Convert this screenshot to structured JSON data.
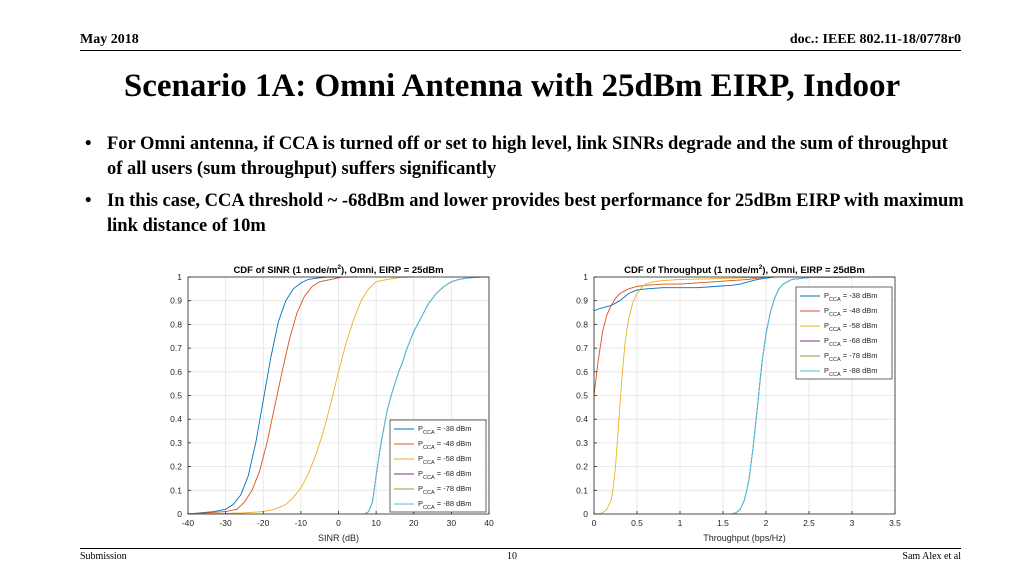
{
  "header": {
    "date": "May 2018",
    "doc": "doc.: IEEE 802.11-18/0778r0"
  },
  "title": "Scenario 1A: Omni Antenna with 25dBm EIRP, Indoor",
  "bullets": [
    "For Omni antenna, if CCA is turned off or set to high level, link SINRs degrade and the sum of throughput of all users (sum throughput) suffers significantly",
    "In this case, CCA threshold ~ -68dBm and lower provides best performance for 25dBm EIRP with maximum link distance of 10m"
  ],
  "footer": {
    "left": "Submission",
    "page": "10",
    "right": "Sam Alex et al"
  },
  "chart_data": [
    {
      "type": "line",
      "title_main": "CDF of SINR (1 node/m",
      "title_sup": "2",
      "title_rest": "), Omni, EIRP = 25dBm",
      "xlabel": "SINR (dB)",
      "ylabel": "",
      "xlim": [
        -40,
        40
      ],
      "ylim": [
        0,
        1
      ],
      "xticks": [
        -40,
        -30,
        -20,
        -10,
        0,
        10,
        20,
        30,
        40
      ],
      "xtick_labels": [
        "-40",
        "-30",
        "-20",
        "-10",
        "0",
        "10",
        "20",
        "30",
        "40"
      ],
      "yticks": [
        0,
        0.1,
        0.2,
        0.3,
        0.4,
        0.5,
        0.6,
        0.7,
        0.8,
        0.9,
        1
      ],
      "ytick_labels": [
        "0",
        "0.1",
        "0.2",
        "0.3",
        "0.4",
        "0.5",
        "0.6",
        "0.7",
        "0.8",
        "0.9",
        "1"
      ],
      "grid": true,
      "legend_position": "bottom-right",
      "series": [
        {
          "legend_main": "P",
          "legend_sub": "CCA",
          "legend_rest": " = -38 dBm",
          "color": "#0072bd",
          "x": [
            -40,
            -33,
            -30,
            -28,
            -26,
            -24,
            -22,
            -20,
            -18,
            -16,
            -14,
            -12,
            -10,
            -8,
            -6,
            -3,
            0
          ],
          "y": [
            0,
            0.01,
            0.02,
            0.04,
            0.08,
            0.16,
            0.3,
            0.48,
            0.66,
            0.81,
            0.9,
            0.95,
            0.975,
            0.99,
            0.995,
            1,
            1
          ]
        },
        {
          "legend_main": "P",
          "legend_sub": "CCA",
          "legend_rest": " = -48 dBm",
          "color": "#d95319",
          "x": [
            -40,
            -35,
            -30,
            -27,
            -25,
            -23,
            -21,
            -19,
            -17,
            -15,
            -13,
            -11,
            -9,
            -7,
            -5,
            -2,
            1,
            5
          ],
          "y": [
            0,
            0.005,
            0.01,
            0.02,
            0.05,
            0.1,
            0.18,
            0.3,
            0.45,
            0.6,
            0.74,
            0.85,
            0.92,
            0.96,
            0.98,
            0.99,
            1,
            1
          ]
        },
        {
          "legend_main": "P",
          "legend_sub": "CCA",
          "legend_rest": " = -58 dBm",
          "color": "#edb120",
          "x": [
            -40,
            -30,
            -25,
            -20,
            -17,
            -14,
            -12,
            -10,
            -8,
            -6,
            -4,
            -2,
            0,
            2,
            4,
            6,
            8,
            10,
            13,
            16,
            20
          ],
          "y": [
            0,
            0.002,
            0.005,
            0.01,
            0.02,
            0.04,
            0.07,
            0.11,
            0.17,
            0.25,
            0.35,
            0.47,
            0.6,
            0.72,
            0.82,
            0.9,
            0.95,
            0.98,
            0.99,
            0.998,
            1
          ]
        },
        {
          "legend_main": "P",
          "legend_sub": "CCA",
          "legend_rest": " = -68 dBm",
          "color": "#7e2f8e",
          "x": [
            7,
            8,
            9,
            10,
            11,
            12,
            13,
            14,
            15,
            16,
            17,
            18,
            19,
            20,
            21,
            22,
            23,
            24,
            25,
            26,
            27,
            28,
            29,
            30,
            32,
            34,
            36,
            38,
            40
          ],
          "y": [
            0,
            0.01,
            0.05,
            0.16,
            0.27,
            0.36,
            0.44,
            0.5,
            0.55,
            0.6,
            0.64,
            0.69,
            0.73,
            0.77,
            0.8,
            0.83,
            0.86,
            0.89,
            0.91,
            0.93,
            0.945,
            0.96,
            0.97,
            0.98,
            0.99,
            0.995,
            0.998,
            1,
            1
          ]
        },
        {
          "legend_main": "P",
          "legend_sub": "CCA",
          "legend_rest": " = -78 dBm",
          "color": "#77ac30",
          "x": [
            7,
            8,
            9,
            10,
            11,
            12,
            13,
            14,
            15,
            16,
            17,
            18,
            19,
            20,
            21,
            22,
            23,
            24,
            25,
            26,
            27,
            28,
            29,
            30,
            32,
            34,
            36,
            38,
            40
          ],
          "y": [
            0,
            0.01,
            0.05,
            0.16,
            0.27,
            0.36,
            0.44,
            0.5,
            0.55,
            0.6,
            0.64,
            0.69,
            0.73,
            0.77,
            0.8,
            0.83,
            0.86,
            0.89,
            0.91,
            0.93,
            0.945,
            0.96,
            0.97,
            0.98,
            0.99,
            0.995,
            0.998,
            1,
            1
          ]
        },
        {
          "legend_main": "P",
          "legend_sub": "CCA",
          "legend_rest": " = -88 dBm",
          "color": "#4dbeee",
          "x": [
            7,
            8,
            9,
            10,
            11,
            12,
            13,
            14,
            15,
            16,
            17,
            18,
            19,
            20,
            21,
            22,
            23,
            24,
            25,
            26,
            27,
            28,
            29,
            30,
            32,
            34,
            36,
            38,
            40
          ],
          "y": [
            0,
            0.01,
            0.05,
            0.16,
            0.27,
            0.36,
            0.44,
            0.5,
            0.55,
            0.6,
            0.64,
            0.69,
            0.73,
            0.77,
            0.8,
            0.83,
            0.86,
            0.89,
            0.91,
            0.93,
            0.945,
            0.96,
            0.97,
            0.98,
            0.99,
            0.995,
            0.998,
            1,
            1
          ]
        }
      ]
    },
    {
      "type": "line",
      "title_main": "CDF of Throughput (1 node/m",
      "title_sup": "2",
      "title_rest": "), Omni, EIRP = 25dBm",
      "xlabel": "Throughput (bps/Hz)",
      "ylabel": "",
      "xlim": [
        0,
        3.5
      ],
      "ylim": [
        0,
        1
      ],
      "xticks": [
        0,
        0.5,
        1,
        1.5,
        2,
        2.5,
        3,
        3.5
      ],
      "xtick_labels": [
        "0",
        "0.5",
        "1",
        "1.5",
        "2",
        "2.5",
        "3",
        "3.5"
      ],
      "yticks": [
        0,
        0.1,
        0.2,
        0.3,
        0.4,
        0.5,
        0.6,
        0.7,
        0.8,
        0.9,
        1
      ],
      "ytick_labels": [
        "0",
        "0.1",
        "0.2",
        "0.3",
        "0.4",
        "0.5",
        "0.6",
        "0.7",
        "0.8",
        "0.9",
        "1"
      ],
      "grid": true,
      "legend_position": "top-right",
      "series": [
        {
          "legend_main": "P",
          "legend_sub": "CCA",
          "legend_rest": " = -38 dBm",
          "color": "#0072bd",
          "x": [
            0,
            0.02,
            0.05,
            0.1,
            0.15,
            0.2,
            0.3,
            0.4,
            0.5,
            0.6,
            0.8,
            1.0,
            1.2,
            1.4,
            1.6,
            1.7,
            1.8,
            1.9,
            2.0,
            2.1,
            2.2,
            2.4
          ],
          "y": [
            0.86,
            0.86,
            0.865,
            0.87,
            0.875,
            0.88,
            0.9,
            0.93,
            0.945,
            0.95,
            0.955,
            0.955,
            0.955,
            0.96,
            0.965,
            0.97,
            0.98,
            0.99,
            0.995,
            1,
            1,
            1
          ]
        },
        {
          "legend_main": "P",
          "legend_sub": "CCA",
          "legend_rest": " = -48 dBm",
          "color": "#d95319",
          "x": [
            0,
            0.02,
            0.05,
            0.1,
            0.15,
            0.2,
            0.25,
            0.3,
            0.35,
            0.4,
            0.5,
            0.6,
            0.8,
            1.0,
            1.2,
            1.4,
            1.6,
            1.8,
            1.9,
            2.0,
            2.1,
            2.4
          ],
          "y": [
            0.5,
            0.56,
            0.65,
            0.77,
            0.84,
            0.88,
            0.91,
            0.93,
            0.94,
            0.95,
            0.96,
            0.965,
            0.97,
            0.97,
            0.975,
            0.98,
            0.985,
            0.99,
            0.995,
            1,
            1,
            1
          ]
        },
        {
          "legend_main": "P",
          "legend_sub": "CCA",
          "legend_rest": " = -58 dBm",
          "color": "#edb120",
          "x": [
            0.05,
            0.1,
            0.15,
            0.2,
            0.22,
            0.25,
            0.28,
            0.3,
            0.33,
            0.36,
            0.4,
            0.45,
            0.5,
            0.55,
            0.6,
            0.7,
            0.8,
            1.0,
            1.3,
            1.6,
            1.9,
            2.0,
            2.2
          ],
          "y": [
            0,
            0.005,
            0.02,
            0.06,
            0.1,
            0.2,
            0.35,
            0.45,
            0.6,
            0.72,
            0.82,
            0.89,
            0.93,
            0.955,
            0.97,
            0.98,
            0.985,
            0.99,
            0.992,
            0.995,
            0.998,
            1,
            1
          ]
        },
        {
          "legend_main": "P",
          "legend_sub": "CCA",
          "legend_rest": " = -68 dBm",
          "color": "#7e2f8e",
          "x": [
            1.6,
            1.65,
            1.7,
            1.75,
            1.8,
            1.85,
            1.9,
            1.93,
            1.96,
            2.0,
            2.05,
            2.1,
            2.15,
            2.2,
            2.3,
            2.5,
            3.0,
            3.5
          ],
          "y": [
            0,
            0.005,
            0.02,
            0.06,
            0.14,
            0.28,
            0.45,
            0.56,
            0.66,
            0.76,
            0.85,
            0.91,
            0.95,
            0.97,
            0.99,
            0.998,
            1,
            1
          ]
        },
        {
          "legend_main": "P",
          "legend_sub": "CCA",
          "legend_rest": " = -78 dBm",
          "color": "#77ac30",
          "x": [
            1.6,
            1.65,
            1.7,
            1.75,
            1.8,
            1.85,
            1.9,
            1.93,
            1.96,
            2.0,
            2.05,
            2.1,
            2.15,
            2.2,
            2.3,
            2.5,
            3.0,
            3.5
          ],
          "y": [
            0,
            0.005,
            0.02,
            0.06,
            0.14,
            0.28,
            0.45,
            0.56,
            0.66,
            0.76,
            0.85,
            0.91,
            0.95,
            0.97,
            0.99,
            0.998,
            1,
            1
          ]
        },
        {
          "legend_main": "P",
          "legend_sub": "CCA",
          "legend_rest": " = -88 dBm",
          "color": "#4dbeee",
          "x": [
            1.6,
            1.65,
            1.7,
            1.75,
            1.8,
            1.85,
            1.9,
            1.93,
            1.96,
            2.0,
            2.05,
            2.1,
            2.15,
            2.2,
            2.3,
            2.5,
            3.0,
            3.5
          ],
          "y": [
            0,
            0.005,
            0.02,
            0.06,
            0.14,
            0.28,
            0.45,
            0.56,
            0.66,
            0.76,
            0.85,
            0.91,
            0.95,
            0.97,
            0.99,
            0.998,
            1,
            1
          ]
        }
      ]
    }
  ]
}
